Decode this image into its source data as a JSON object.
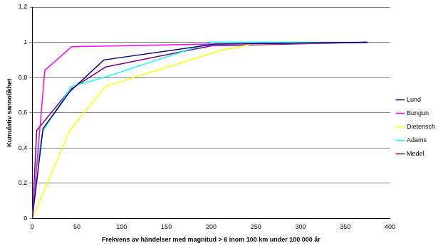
{
  "chart_data": {
    "type": "line",
    "x_label": "Frekvens av händelser med magnitud > 6 inom 100 km under 100 000 år",
    "y_label": "Kumulativ sannolikhet",
    "xlim": [
      0,
      400
    ],
    "xticks": [
      0,
      50,
      100,
      150,
      200,
      250,
      300,
      350,
      400
    ],
    "ylim": [
      0,
      1.2
    ],
    "yticks": [
      0,
      {
        "value": 0.2,
        "label": "0,2"
      },
      {
        "value": 0.4,
        "label": "0,4"
      },
      {
        "value": 0.6,
        "label": "0,6"
      },
      {
        "value": 0.8,
        "label": "0,8"
      },
      1,
      {
        "value": 1.2,
        "label": "1,2"
      }
    ],
    "grid": true,
    "legend": "right",
    "marker": "none",
    "series": [
      {
        "name": "Lund",
        "color": "#000080",
        "x": [
          0,
          12,
          42,
          80,
          205,
          375
        ],
        "values": [
          0,
          0.51,
          0.72,
          0.9,
          0.99,
          1
        ]
      },
      {
        "name": "Bungun",
        "color": "#ff00ff",
        "x": [
          0,
          14,
          44,
          200,
          375
        ],
        "values": [
          0,
          0.84,
          0.975,
          0.99,
          1
        ]
      },
      {
        "name": "Dieterisch",
        "color": "#ffff00",
        "x": [
          0,
          42,
          82,
          208,
          245,
          375
        ],
        "values": [
          0,
          0.5,
          0.75,
          0.95,
          0.99,
          1
        ]
      },
      {
        "name": "Adams",
        "color": "#00ffff",
        "x": [
          0,
          5,
          12,
          44,
          80,
          200,
          375
        ],
        "values": [
          0,
          0.3,
          0.5,
          0.75,
          0.8,
          1,
          1
        ]
      },
      {
        "name": "Medel",
        "color": "#800080",
        "x": [
          0,
          5,
          42,
          82,
          200,
          375
        ],
        "values": [
          0,
          0.5,
          0.73,
          0.86,
          0.98,
          1
        ]
      }
    ]
  }
}
